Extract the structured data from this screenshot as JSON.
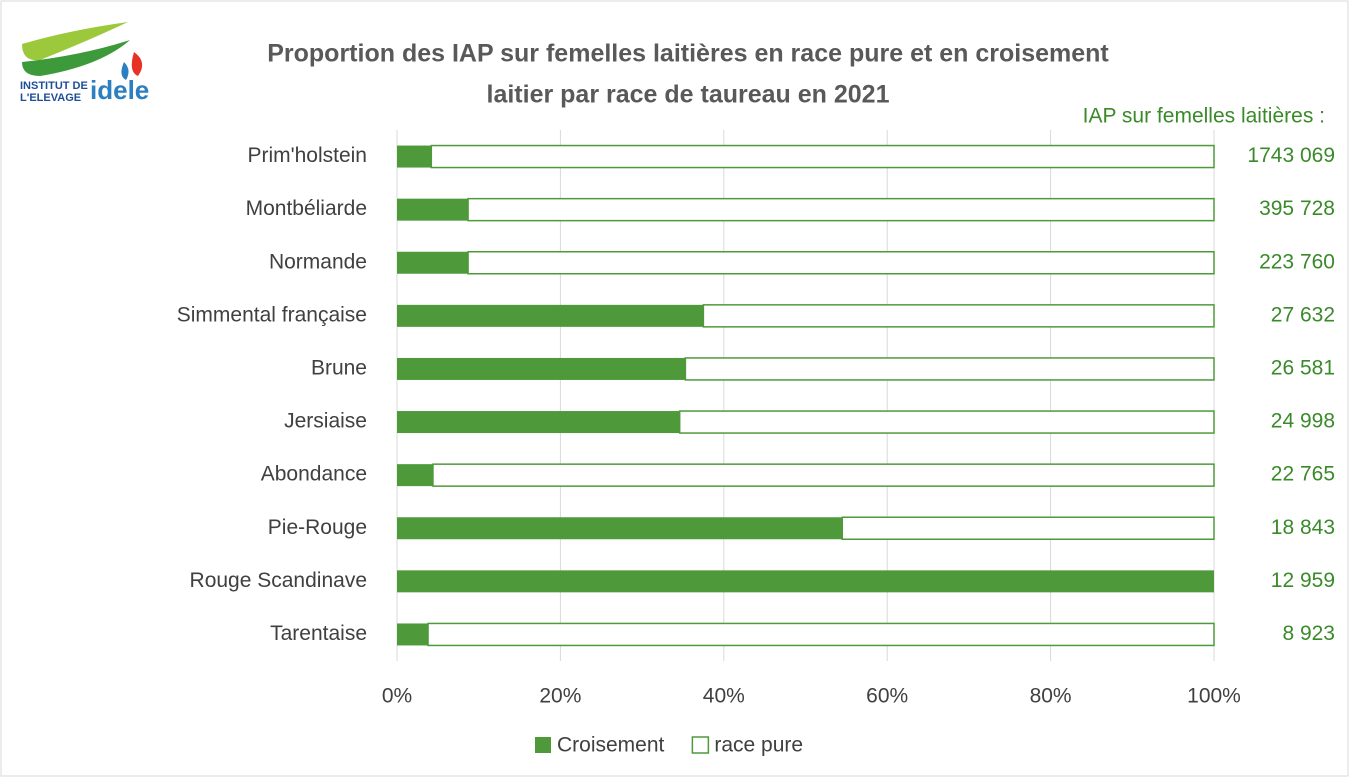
{
  "logo": {
    "line1": "INSTITUT DE",
    "line2": "L'ELEVAGE",
    "brand": "idele"
  },
  "chart_data": {
    "type": "stacked_barh",
    "title": [
      "Proportion des IAP sur femelles laitières en race pure et en croisement",
      "laitier par race de taureau en 2021"
    ],
    "categories": [
      "Prim'holstein",
      "Montbéliarde",
      "Normande",
      "Simmental française",
      "Brune",
      "Jersiaise",
      "Abondance",
      "Pie-Rouge",
      "Rouge Scandinave",
      "Tarentaise"
    ],
    "series": [
      {
        "name": "Croisement",
        "color": "#4e9a3b",
        "values": [
          4.2,
          8.7,
          8.7,
          37.5,
          35.3,
          34.6,
          4.4,
          54.5,
          100,
          3.8
        ]
      },
      {
        "name": "race pure",
        "color": "#ffffff",
        "border": "#4e9a3b",
        "values": [
          95.8,
          91.3,
          91.3,
          62.5,
          64.7,
          65.4,
          95.6,
          45.5,
          0,
          96.2
        ]
      }
    ],
    "totals": {
      "label": "IAP sur femelles laitières :",
      "values": [
        1743069,
        395728,
        223760,
        27632,
        26581,
        24998,
        22765,
        18843,
        12959,
        8923
      ],
      "value_labels": [
        "1743 069",
        "395 728",
        "223 760",
        "27 632",
        "26 581",
        "24 998",
        "22 765",
        "18 843",
        "12 959",
        "8 923"
      ]
    },
    "xlim": [
      0,
      100
    ],
    "xticks": [
      {
        "value": 0,
        "label": "0%"
      },
      {
        "value": 20,
        "label": "20%"
      },
      {
        "value": 40,
        "label": "40%"
      },
      {
        "value": 60,
        "label": "60%"
      },
      {
        "value": 80,
        "label": "80%"
      },
      {
        "value": 100,
        "label": "100%"
      }
    ],
    "grid": true,
    "legend": "bottom"
  }
}
